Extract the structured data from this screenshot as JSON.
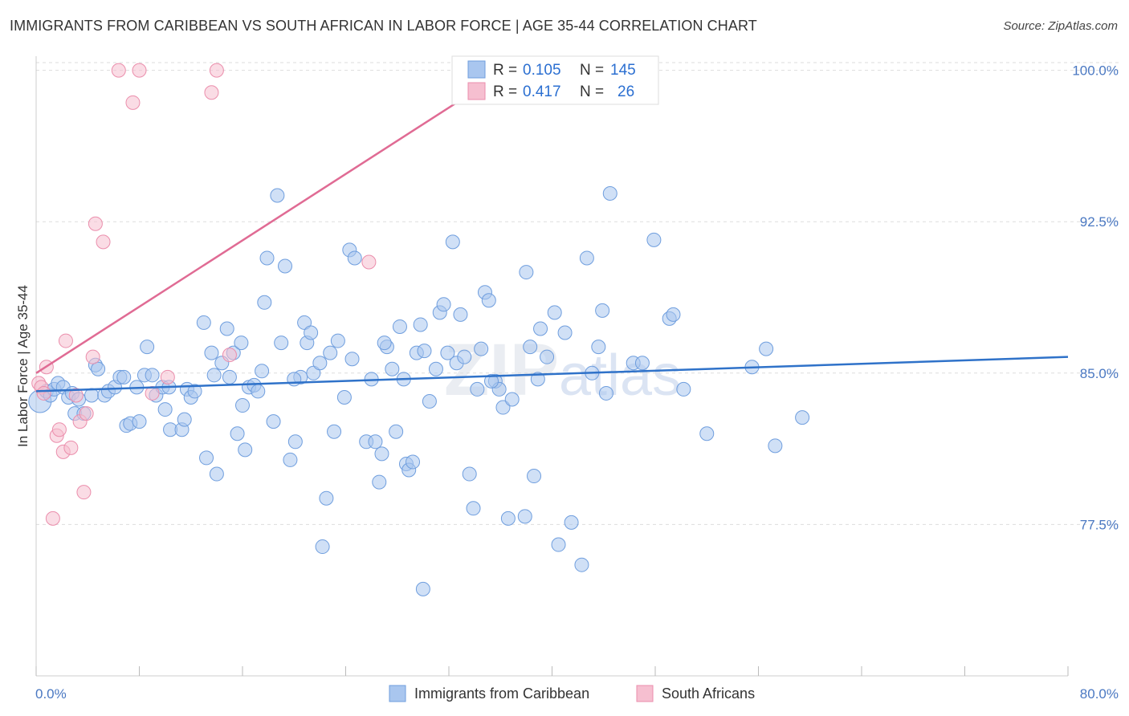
{
  "header": {
    "title": "IMMIGRANTS FROM CARIBBEAN VS SOUTH AFRICAN IN LABOR FORCE | AGE 35-44 CORRELATION CHART",
    "source": "Source: ZipAtlas.com"
  },
  "watermark": {
    "zip": "ZIP",
    "atlas": "atlas"
  },
  "legend": {
    "series1": {
      "r_label": "R =",
      "r_value": "0.105",
      "n_label": "N =",
      "n_value": "145"
    },
    "series2": {
      "r_label": "R =",
      "r_value": "0.417",
      "n_label": "N =",
      "n_value": "26"
    }
  },
  "colors": {
    "blue_fill": "#a9c6ef",
    "blue_stroke": "#6f9ede",
    "blue_line": "#2f72c9",
    "pink_fill": "#f6bfd0",
    "pink_stroke": "#eb8eac",
    "pink_line": "#e06b94",
    "grid": "#dddddd",
    "tick_label": "#4a78c2"
  },
  "chart_data": {
    "type": "scatter",
    "title": "IMMIGRANTS FROM CARIBBEAN VS SOUTH AFRICAN IN LABOR FORCE | AGE 35-44 CORRELATION CHART",
    "xlabel": "",
    "ylabel": "In Labor Force | Age 35-44",
    "xlim": [
      0,
      80
    ],
    "ylim": [
      70.0,
      100.7
    ],
    "x_tick_labels": [
      "0.0%",
      "80.0%"
    ],
    "y_ticks": [
      77.5,
      85.0,
      92.5,
      100.0
    ],
    "y_tick_labels": [
      "77.5%",
      "85.0%",
      "92.5%",
      "100.0%"
    ],
    "grid": true,
    "legend_position": "top-center",
    "series": [
      {
        "name": "Immigrants from Caribbean",
        "color": "#a9c6ef",
        "R": 0.105,
        "N": 145,
        "trend": {
          "x": [
            0,
            80
          ],
          "y": [
            84.1,
            85.8
          ]
        },
        "points": [
          [
            0.3,
            83.6
          ],
          [
            0.8,
            84.1
          ],
          [
            1.1,
            83.9
          ],
          [
            1.4,
            84.2
          ],
          [
            1.7,
            84.5
          ],
          [
            2.1,
            84.3
          ],
          [
            2.5,
            83.8
          ],
          [
            2.8,
            84.0
          ],
          [
            3.0,
            83.0
          ],
          [
            3.3,
            83.7
          ],
          [
            3.7,
            83.0
          ],
          [
            4.3,
            83.9
          ],
          [
            4.6,
            85.4
          ],
          [
            4.8,
            85.2
          ],
          [
            5.3,
            83.9
          ],
          [
            5.6,
            84.1
          ],
          [
            6.1,
            84.3
          ],
          [
            6.5,
            84.8
          ],
          [
            6.8,
            84.8
          ],
          [
            7.0,
            82.4
          ],
          [
            7.3,
            82.5
          ],
          [
            7.8,
            84.3
          ],
          [
            8.0,
            82.6
          ],
          [
            8.4,
            84.9
          ],
          [
            8.6,
            86.3
          ],
          [
            9.0,
            84.9
          ],
          [
            9.3,
            83.9
          ],
          [
            9.8,
            84.3
          ],
          [
            10.0,
            83.2
          ],
          [
            10.3,
            84.3
          ],
          [
            10.4,
            82.2
          ],
          [
            11.3,
            82.2
          ],
          [
            11.5,
            82.7
          ],
          [
            11.7,
            84.2
          ],
          [
            12.0,
            83.8
          ],
          [
            12.3,
            84.1
          ],
          [
            13.0,
            87.5
          ],
          [
            13.2,
            80.8
          ],
          [
            13.6,
            86.0
          ],
          [
            13.8,
            84.9
          ],
          [
            14.0,
            80.0
          ],
          [
            14.4,
            85.5
          ],
          [
            14.8,
            87.2
          ],
          [
            15.0,
            84.8
          ],
          [
            15.3,
            86.0
          ],
          [
            15.6,
            82.0
          ],
          [
            15.9,
            86.5
          ],
          [
            16.2,
            81.2
          ],
          [
            16.5,
            84.3
          ],
          [
            16.9,
            84.4
          ],
          [
            17.2,
            84.1
          ],
          [
            17.5,
            85.1
          ],
          [
            17.7,
            88.5
          ],
          [
            17.9,
            90.7
          ],
          [
            18.4,
            82.6
          ],
          [
            18.7,
            93.8
          ],
          [
            19.0,
            86.5
          ],
          [
            19.3,
            90.3
          ],
          [
            19.7,
            80.7
          ],
          [
            20.1,
            81.6
          ],
          [
            20.5,
            84.8
          ],
          [
            20.8,
            87.5
          ],
          [
            21.0,
            86.5
          ],
          [
            21.3,
            87.0
          ],
          [
            21.5,
            85.0
          ],
          [
            22.0,
            85.5
          ],
          [
            22.2,
            76.4
          ],
          [
            22.5,
            78.8
          ],
          [
            22.8,
            86.0
          ],
          [
            23.1,
            82.1
          ],
          [
            23.4,
            86.6
          ],
          [
            23.9,
            83.8
          ],
          [
            24.3,
            91.1
          ],
          [
            24.5,
            85.7
          ],
          [
            24.7,
            90.7
          ],
          [
            25.6,
            81.6
          ],
          [
            26.0,
            84.7
          ],
          [
            26.3,
            81.6
          ],
          [
            26.6,
            79.6
          ],
          [
            26.8,
            81.0
          ],
          [
            27.2,
            86.3
          ],
          [
            27.6,
            85.2
          ],
          [
            27.9,
            82.1
          ],
          [
            28.2,
            87.3
          ],
          [
            28.5,
            84.7
          ],
          [
            28.7,
            80.5
          ],
          [
            28.9,
            80.2
          ],
          [
            29.2,
            80.6
          ],
          [
            29.5,
            86.0
          ],
          [
            29.8,
            87.4
          ],
          [
            30.1,
            86.1
          ],
          [
            30.5,
            83.6
          ],
          [
            31.0,
            85.2
          ],
          [
            31.3,
            88.0
          ],
          [
            31.6,
            88.4
          ],
          [
            31.9,
            86.0
          ],
          [
            32.3,
            91.5
          ],
          [
            32.6,
            85.5
          ],
          [
            32.9,
            87.9
          ],
          [
            33.2,
            85.8
          ],
          [
            33.6,
            80.0
          ],
          [
            33.9,
            78.3
          ],
          [
            34.2,
            84.2
          ],
          [
            34.5,
            86.2
          ],
          [
            34.8,
            89.0
          ],
          [
            35.1,
            88.6
          ],
          [
            35.6,
            84.6
          ],
          [
            35.9,
            84.2
          ],
          [
            36.2,
            83.3
          ],
          [
            36.6,
            77.8
          ],
          [
            36.9,
            83.7
          ],
          [
            37.9,
            77.9
          ],
          [
            38.0,
            90.0
          ],
          [
            38.3,
            86.3
          ],
          [
            38.6,
            79.9
          ],
          [
            38.9,
            84.7
          ],
          [
            39.1,
            87.2
          ],
          [
            39.6,
            85.8
          ],
          [
            40.2,
            88.0
          ],
          [
            40.5,
            76.5
          ],
          [
            41.0,
            87.0
          ],
          [
            41.5,
            77.6
          ],
          [
            42.3,
            75.5
          ],
          [
            42.7,
            90.7
          ],
          [
            43.1,
            85.0
          ],
          [
            43.6,
            86.3
          ],
          [
            43.9,
            88.1
          ],
          [
            44.2,
            84.0
          ],
          [
            44.5,
            93.9
          ],
          [
            46.3,
            85.5
          ],
          [
            47.0,
            85.5
          ],
          [
            47.9,
            91.6
          ],
          [
            49.1,
            87.7
          ],
          [
            49.4,
            87.9
          ],
          [
            50.2,
            84.2
          ],
          [
            52.0,
            82.0
          ],
          [
            55.5,
            85.3
          ],
          [
            56.6,
            86.2
          ],
          [
            57.3,
            81.4
          ],
          [
            59.4,
            82.8
          ],
          [
            30.0,
            74.3
          ],
          [
            35.3,
            84.6
          ],
          [
            27.0,
            86.5
          ],
          [
            20.0,
            84.7
          ],
          [
            16.0,
            83.4
          ]
        ]
      },
      {
        "name": "South Africans",
        "color": "#f6bfd0",
        "R": 0.417,
        "N": 26,
        "trend": {
          "x": [
            0,
            36.5
          ],
          "y": [
            85.0,
            100.0
          ]
        },
        "points": [
          [
            0.2,
            84.5
          ],
          [
            0.4,
            84.3
          ],
          [
            0.6,
            84.0
          ],
          [
            0.8,
            85.3
          ],
          [
            1.6,
            81.9
          ],
          [
            1.8,
            82.2
          ],
          [
            2.1,
            81.1
          ],
          [
            2.3,
            86.6
          ],
          [
            2.7,
            81.3
          ],
          [
            3.1,
            83.9
          ],
          [
            3.4,
            82.6
          ],
          [
            3.7,
            79.1
          ],
          [
            3.9,
            83.0
          ],
          [
            4.4,
            85.8
          ],
          [
            4.6,
            92.4
          ],
          [
            5.2,
            91.5
          ],
          [
            6.4,
            100.0
          ],
          [
            7.5,
            98.4
          ],
          [
            8.0,
            100.0
          ],
          [
            9.0,
            84.0
          ],
          [
            10.2,
            84.8
          ],
          [
            13.6,
            98.9
          ],
          [
            14.0,
            100.0
          ],
          [
            15.0,
            85.9
          ],
          [
            25.8,
            90.5
          ],
          [
            1.3,
            77.8
          ]
        ]
      }
    ]
  },
  "bottom_legend": {
    "item1": "Immigrants from Caribbean",
    "item2": "South Africans"
  }
}
